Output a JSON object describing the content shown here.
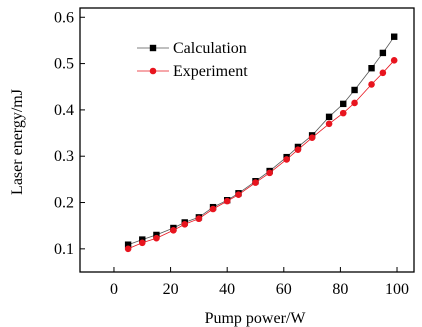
{
  "chart_data": {
    "type": "line",
    "xlabel": "Pump power/W",
    "ylabel": "Laser energy/mJ",
    "xlim": [
      -12,
      106
    ],
    "ylim": [
      0.05,
      0.62
    ],
    "x_ticks": [
      0,
      20,
      40,
      60,
      80,
      100
    ],
    "y_ticks": [
      0.1,
      0.2,
      0.3,
      0.4,
      0.5,
      0.6
    ],
    "x_tick_labels": [
      "0",
      "20",
      "40",
      "60",
      "80",
      "100"
    ],
    "y_tick_labels": [
      "0.1",
      "0.2",
      "0.3",
      "0.4",
      "0.5",
      "0.6"
    ],
    "grid": false,
    "legend_position": "top-left",
    "series": [
      {
        "name": "Calculation",
        "color": "#000000",
        "marker": "square",
        "x": [
          5,
          10,
          15,
          21,
          25,
          30,
          35,
          40,
          44,
          50,
          55,
          61,
          65,
          70,
          76,
          81,
          85,
          91,
          95,
          99
        ],
        "y": [
          0.109,
          0.12,
          0.13,
          0.145,
          0.157,
          0.168,
          0.19,
          0.205,
          0.22,
          0.246,
          0.268,
          0.298,
          0.32,
          0.345,
          0.385,
          0.413,
          0.443,
          0.49,
          0.523,
          0.558
        ]
      },
      {
        "name": "Experiment",
        "color": "#e8141e",
        "marker": "circle",
        "x": [
          5,
          10,
          15,
          21,
          25,
          30,
          35,
          40,
          44,
          50,
          55,
          61,
          65,
          70,
          76,
          81,
          85,
          91,
          95,
          99
        ],
        "y": [
          0.1,
          0.113,
          0.123,
          0.14,
          0.153,
          0.165,
          0.186,
          0.203,
          0.217,
          0.243,
          0.264,
          0.293,
          0.314,
          0.34,
          0.37,
          0.393,
          0.415,
          0.455,
          0.48,
          0.507
        ]
      }
    ]
  }
}
